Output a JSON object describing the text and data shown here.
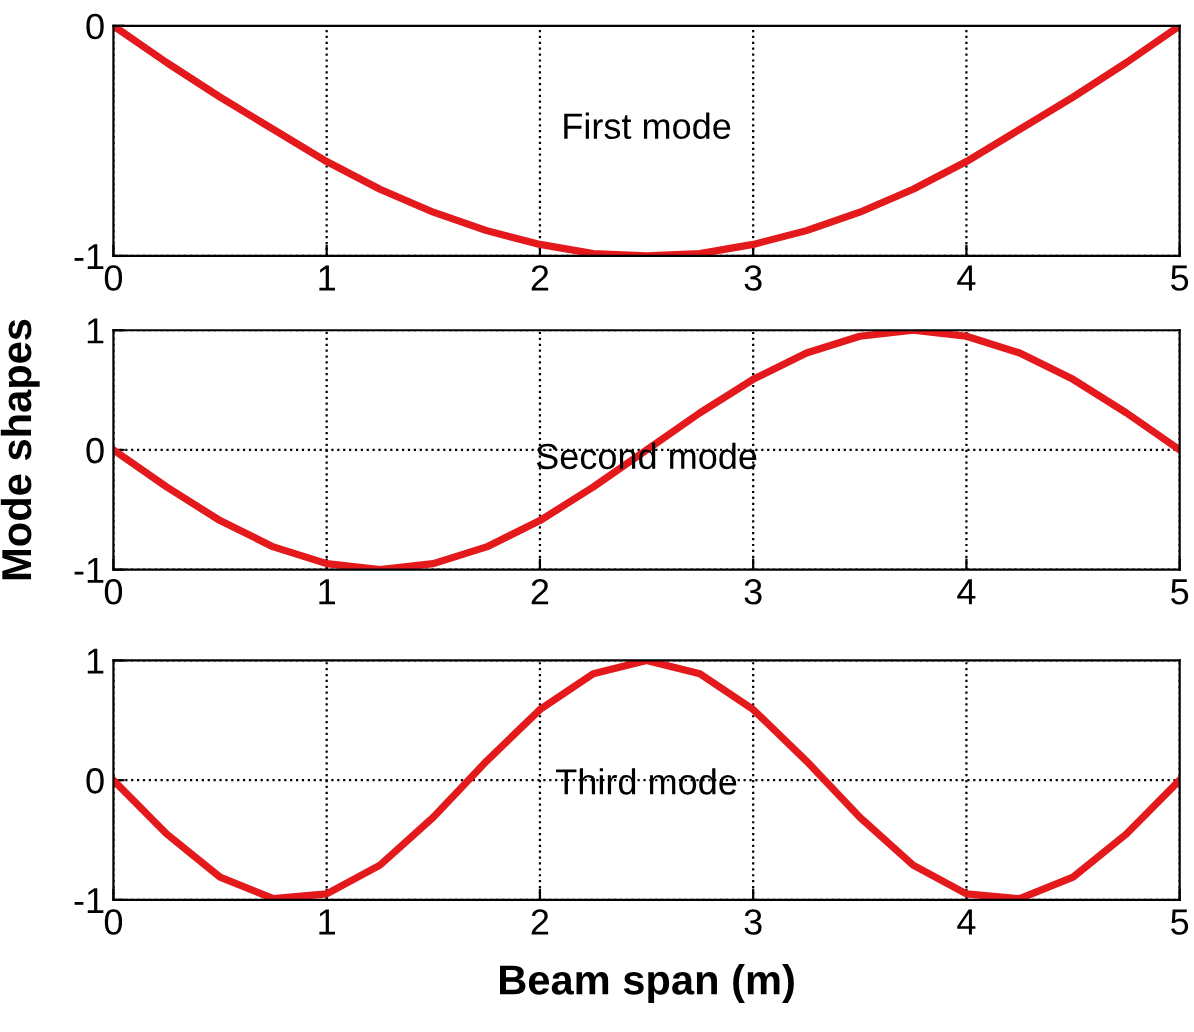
{
  "chart_data": [
    {
      "type": "line",
      "annotations": [
        "First mode"
      ],
      "x": [
        0,
        0.25,
        0.5,
        0.75,
        1,
        1.25,
        1.5,
        1.75,
        2,
        2.25,
        2.5,
        2.75,
        3,
        3.25,
        3.5,
        3.75,
        4,
        4.25,
        4.5,
        4.75,
        5
      ],
      "series": [
        {
          "color": "#e3191c",
          "values": [
            0,
            -0.16,
            -0.31,
            -0.45,
            -0.59,
            -0.71,
            -0.81,
            -0.89,
            -0.95,
            -0.99,
            -1,
            -0.99,
            -0.95,
            -0.89,
            -0.81,
            -0.71,
            -0.59,
            -0.45,
            -0.31,
            -0.16,
            0
          ]
        }
      ],
      "xlim": [
        0,
        5
      ],
      "xticks": [
        0,
        1,
        2,
        3,
        4,
        5
      ],
      "ylim": [
        -1,
        0
      ],
      "yticks": [
        -1,
        0
      ],
      "grid": true,
      "line_style": "solid",
      "marker": "none"
    },
    {
      "type": "line",
      "ylabel": "Mode shapes",
      "annotations": [
        "Second mode"
      ],
      "x": [
        0,
        0.25,
        0.5,
        0.75,
        1,
        1.25,
        1.5,
        1.75,
        2,
        2.25,
        2.5,
        2.75,
        3,
        3.25,
        3.5,
        3.75,
        4,
        4.25,
        4.5,
        4.75,
        5
      ],
      "series": [
        {
          "color": "#e3191c",
          "values": [
            0,
            -0.31,
            -0.59,
            -0.81,
            -0.95,
            -1,
            -0.95,
            -0.81,
            -0.59,
            -0.31,
            0,
            0.31,
            0.59,
            0.81,
            0.95,
            1,
            0.95,
            0.81,
            0.59,
            0.31,
            0
          ]
        }
      ],
      "xlim": [
        0,
        5
      ],
      "xticks": [
        0,
        1,
        2,
        3,
        4,
        5
      ],
      "ylim": [
        -1,
        1
      ],
      "yticks": [
        -1,
        0,
        1
      ],
      "grid": true,
      "line_style": "solid",
      "marker": "none"
    },
    {
      "type": "line",
      "xlabel": "Beam span (m)",
      "annotations": [
        "Third mode"
      ],
      "x": [
        0,
        0.25,
        0.5,
        0.75,
        1,
        1.25,
        1.5,
        1.75,
        2,
        2.25,
        2.5,
        2.75,
        3,
        3.25,
        3.5,
        3.75,
        4,
        4.25,
        4.5,
        4.75,
        5
      ],
      "series": [
        {
          "color": "#e3191c",
          "values": [
            0,
            -0.45,
            -0.81,
            -0.99,
            -0.95,
            -0.71,
            -0.31,
            0.16,
            0.59,
            0.89,
            1,
            0.89,
            0.59,
            0.16,
            -0.31,
            -0.71,
            -0.95,
            -0.99,
            -0.81,
            -0.45,
            0
          ]
        }
      ],
      "xlim": [
        0,
        5
      ],
      "xticks": [
        0,
        1,
        2,
        3,
        4,
        5
      ],
      "ylim": [
        -1,
        1
      ],
      "yticks": [
        -1,
        0,
        1
      ],
      "grid": true,
      "line_style": "solid",
      "marker": "none"
    }
  ]
}
